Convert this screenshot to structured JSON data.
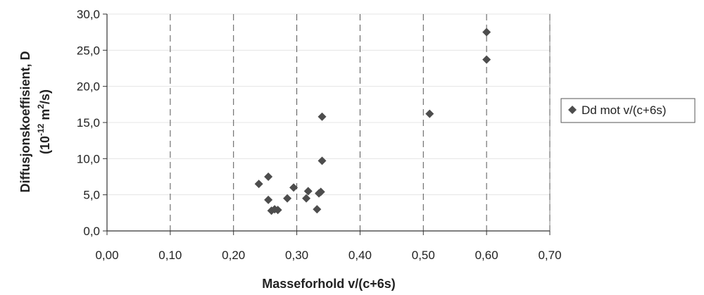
{
  "chart_data": {
    "type": "scatter",
    "title": "",
    "xlabel": "Masseforhold v/(c+6s)",
    "ylabel": {
      "line1": "Diffusjonskoeffisient, D",
      "line2_prefix": "(10",
      "line2_exp1": "-12",
      "line2_mid": " m",
      "line2_exp2": "2",
      "line2_suffix": "/s)"
    },
    "xlim": [
      0.0,
      0.7
    ],
    "ylim": [
      0.0,
      30.0
    ],
    "x_ticks": [
      "0,00",
      "0,10",
      "0,20",
      "0,30",
      "0,40",
      "0,50",
      "0,60",
      "0,70"
    ],
    "y_ticks": [
      "0,0",
      "5,0",
      "10,0",
      "15,0",
      "20,0",
      "25,0",
      "30,0"
    ],
    "grid": "vertical-dashed",
    "legend_position": "right",
    "marker": "diamond",
    "marker_color": "#4d4d4d",
    "series": [
      {
        "name": "Dd mot v/(c+6s)",
        "points": [
          {
            "x": 0.24,
            "y": 6.5
          },
          {
            "x": 0.255,
            "y": 7.5
          },
          {
            "x": 0.255,
            "y": 4.3
          },
          {
            "x": 0.26,
            "y": 2.8
          },
          {
            "x": 0.265,
            "y": 3.0
          },
          {
            "x": 0.27,
            "y": 2.9
          },
          {
            "x": 0.285,
            "y": 4.5
          },
          {
            "x": 0.295,
            "y": 6.0
          },
          {
            "x": 0.315,
            "y": 4.5
          },
          {
            "x": 0.318,
            "y": 5.5
          },
          {
            "x": 0.332,
            "y": 3.0
          },
          {
            "x": 0.335,
            "y": 5.2
          },
          {
            "x": 0.338,
            "y": 5.4
          },
          {
            "x": 0.34,
            "y": 9.7
          },
          {
            "x": 0.34,
            "y": 15.8
          },
          {
            "x": 0.51,
            "y": 16.2
          },
          {
            "x": 0.6,
            "y": 23.7
          },
          {
            "x": 0.6,
            "y": 27.5
          }
        ]
      }
    ]
  }
}
